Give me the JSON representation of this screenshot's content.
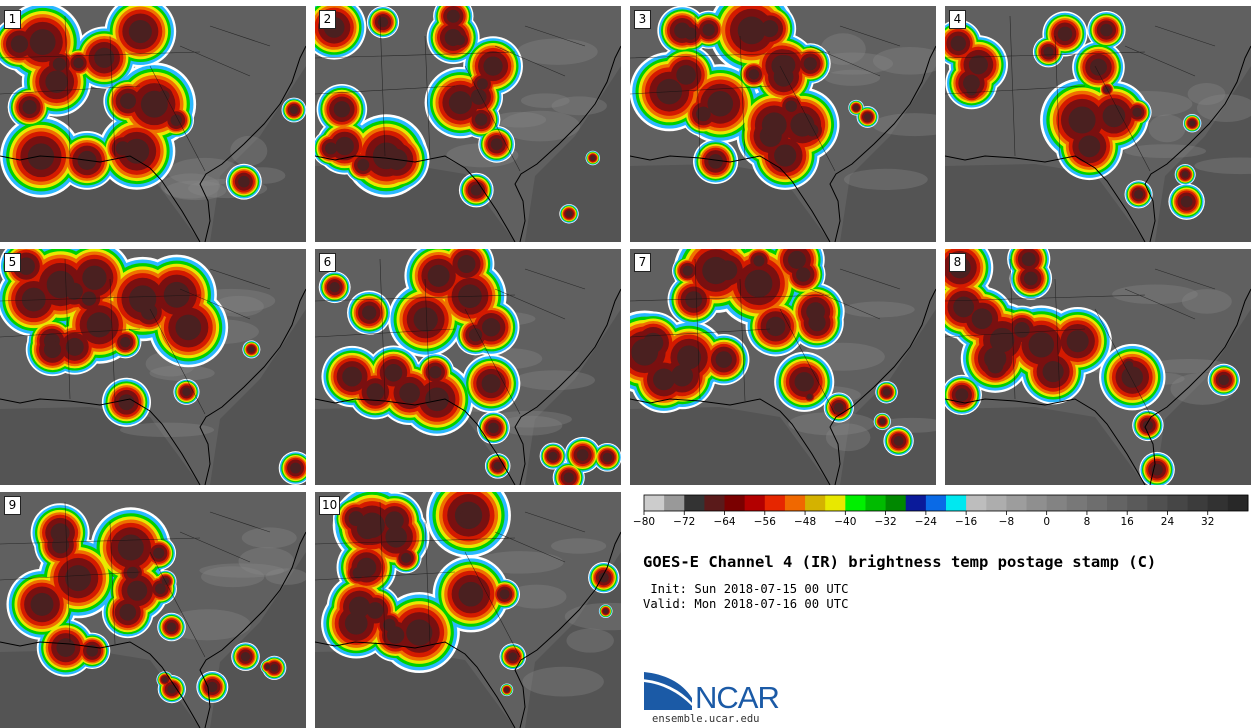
{
  "title": "GOES-E Channel 4 (IR) brightness temp postage stamp (C)",
  "init_line": " Init: Sun 2018-07-15 00 UTC",
  "valid_line": "Valid: Mon 2018-07-16 00 UTC",
  "panels": [
    "1",
    "2",
    "3",
    "4",
    "5",
    "6",
    "7",
    "8",
    "9",
    "10"
  ],
  "colorbar": {
    "tick_labels": [
      "−80",
      "−72",
      "−64",
      "−56",
      "−48",
      "−40",
      "−32",
      "−24",
      "−16",
      "−8",
      "0",
      "8",
      "16",
      "24",
      "32"
    ],
    "tick_values": [
      -80,
      -72,
      -64,
      -56,
      -48,
      -40,
      -32,
      -24,
      -16,
      -8,
      0,
      8,
      16,
      24,
      32
    ],
    "range": [
      -80,
      40
    ],
    "step": 4,
    "colors": [
      "#cccccc",
      "#999999",
      "#333333",
      "#5a1a1a",
      "#7a0000",
      "#b30000",
      "#e62600",
      "#f06800",
      "#d4b200",
      "#e8e800",
      "#00f000",
      "#00bb00",
      "#008800",
      "#0a1a9a",
      "#0a6ae6",
      "#00e8f0",
      "#bdbdbd",
      "#adadad",
      "#9d9d9d",
      "#8f8f8f",
      "#838383",
      "#787878",
      "#6e6e6e",
      "#646464",
      "#5a5a5a",
      "#505050",
      "#464646",
      "#3c3c3c",
      "#323232",
      "#282828"
    ]
  },
  "logo": {
    "name": "NCAR",
    "url": "ensemble.ucar.edu",
    "color": "#1b5aa6"
  }
}
